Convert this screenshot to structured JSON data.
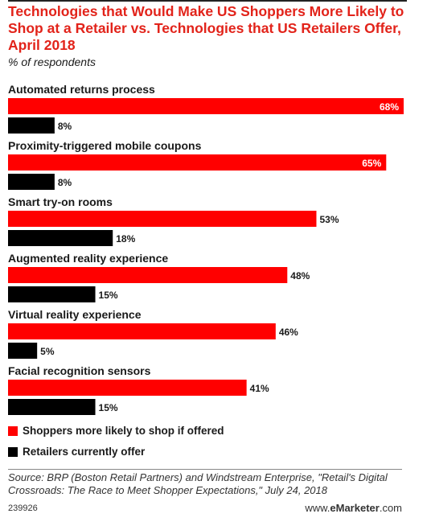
{
  "chart_data": {
    "type": "bar",
    "orientation": "horizontal",
    "title": "Technologies that Would Make US Shoppers More Likely to Shop at a Retailer vs. Technologies that US Retailers Offer, April 2018",
    "subtitle": "% of respondents",
    "categories": [
      "Automated returns process",
      "Proximity-triggered mobile coupons",
      "Smart try-on rooms",
      "Augmented reality experience",
      "Virtual reality experience",
      "Facial recognition sensors"
    ],
    "series": [
      {
        "name": "Shoppers more likely to shop if offered",
        "color": "#ff0000",
        "values": [
          68,
          65,
          53,
          48,
          46,
          41
        ],
        "labels": [
          "68%",
          "65%",
          "53%",
          "48%",
          "46%",
          "41%"
        ]
      },
      {
        "name": "Retailers currently offer",
        "color": "#000000",
        "values": [
          8,
          8,
          18,
          15,
          5,
          15
        ],
        "labels": [
          "8%",
          "8%",
          "18%",
          "15%",
          "5%",
          "15%"
        ]
      }
    ],
    "xlim": [
      0,
      68
    ],
    "legend_position": "bottom"
  },
  "source": "Source: BRP (Boston Retail Partners) and Windstream Enterprise, \"Retail's Digital Crossroads: The Race to Meet Shopper Expectations,\" July 24, 2018",
  "footer": {
    "id": "239926",
    "brand_prefix": "www.",
    "brand_bold": "eMarketer",
    "brand_suffix": ".com"
  }
}
